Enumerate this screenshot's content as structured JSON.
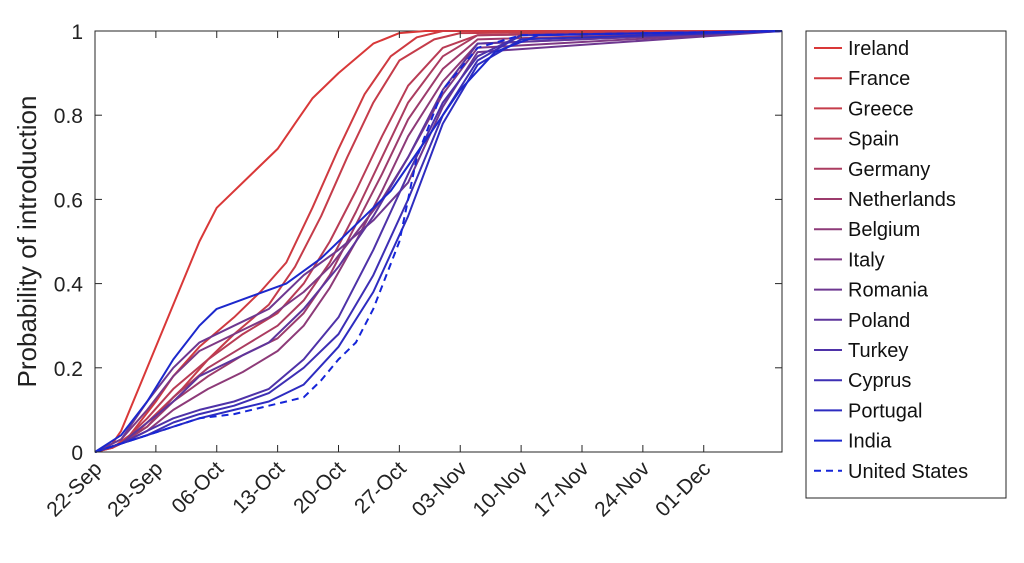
{
  "chart_data": {
    "type": "line",
    "title": "",
    "xlabel": "",
    "ylabel": "Probability of introduction",
    "xlim": [
      "2020-09-22",
      "2020-12-10"
    ],
    "ylim": [
      0,
      1
    ],
    "xticks": [
      {
        "date": "2020-09-22",
        "label": "22-Sep"
      },
      {
        "date": "2020-09-29",
        "label": "29-Sep"
      },
      {
        "date": "2020-10-06",
        "label": "06-Oct"
      },
      {
        "date": "2020-10-13",
        "label": "13-Oct"
      },
      {
        "date": "2020-10-20",
        "label": "20-Oct"
      },
      {
        "date": "2020-10-27",
        "label": "27-Oct"
      },
      {
        "date": "2020-11-03",
        "label": "03-Nov"
      },
      {
        "date": "2020-11-10",
        "label": "10-Nov"
      },
      {
        "date": "2020-11-17",
        "label": "17-Nov"
      },
      {
        "date": "2020-11-24",
        "label": "24-Nov"
      },
      {
        "date": "2020-12-01",
        "label": "01-Dec"
      }
    ],
    "yticks": [
      {
        "value": 0,
        "label": "0"
      },
      {
        "value": 0.2,
        "label": "0.2"
      },
      {
        "value": 0.4,
        "label": "0.4"
      },
      {
        "value": 0.6,
        "label": "0.6"
      },
      {
        "value": 0.8,
        "label": "0.8"
      },
      {
        "value": 1,
        "label": "1"
      }
    ],
    "grid": false,
    "legend_position": "outside-right",
    "series": [
      {
        "name": "Ireland",
        "color": "#d93838",
        "dash": "solid",
        "x": [
          "2020-09-22",
          "2020-09-24",
          "2020-09-25",
          "2020-09-26",
          "2020-09-28",
          "2020-10-01",
          "2020-10-04",
          "2020-10-06",
          "2020-10-10",
          "2020-10-13",
          "2020-10-15",
          "2020-10-17",
          "2020-10-20",
          "2020-10-24",
          "2020-10-27",
          "2020-10-30",
          "2020-11-03",
          "2020-12-10"
        ],
        "y": [
          0,
          0.02,
          0.05,
          0.1,
          0.2,
          0.35,
          0.5,
          0.58,
          0.66,
          0.72,
          0.78,
          0.84,
          0.9,
          0.97,
          0.995,
          1.0,
          1.0,
          1.0
        ]
      },
      {
        "name": "France",
        "color": "#cf3a40",
        "dash": "solid",
        "x": [
          "2020-09-22",
          "2020-09-24",
          "2020-09-26",
          "2020-09-29",
          "2020-10-01",
          "2020-10-04",
          "2020-10-08",
          "2020-10-11",
          "2020-10-14",
          "2020-10-17",
          "2020-10-20",
          "2020-10-23",
          "2020-10-26",
          "2020-10-29",
          "2020-11-01",
          "2020-12-10"
        ],
        "y": [
          0,
          0.01,
          0.04,
          0.12,
          0.18,
          0.25,
          0.32,
          0.38,
          0.45,
          0.58,
          0.72,
          0.85,
          0.94,
          0.985,
          1.0,
          1.0
        ]
      },
      {
        "name": "Greece",
        "color": "#c53c4a",
        "dash": "solid",
        "x": [
          "2020-09-22",
          "2020-09-24",
          "2020-09-26",
          "2020-09-29",
          "2020-10-02",
          "2020-10-05",
          "2020-10-08",
          "2020-10-12",
          "2020-10-15",
          "2020-10-18",
          "2020-10-21",
          "2020-10-24",
          "2020-10-27",
          "2020-10-31",
          "2020-11-03",
          "2020-12-10"
        ],
        "y": [
          0,
          0.01,
          0.03,
          0.09,
          0.15,
          0.22,
          0.28,
          0.35,
          0.44,
          0.56,
          0.7,
          0.83,
          0.93,
          0.98,
          0.995,
          1.0
        ]
      },
      {
        "name": "Spain",
        "color": "#b93c55",
        "dash": "solid",
        "x": [
          "2020-09-22",
          "2020-09-25",
          "2020-09-28",
          "2020-10-01",
          "2020-10-05",
          "2020-10-09",
          "2020-10-13",
          "2020-10-16",
          "2020-10-19",
          "2020-10-22",
          "2020-10-25",
          "2020-10-28",
          "2020-11-01",
          "2020-11-05",
          "2020-12-10"
        ],
        "y": [
          0,
          0.02,
          0.08,
          0.15,
          0.22,
          0.28,
          0.33,
          0.4,
          0.5,
          0.62,
          0.75,
          0.87,
          0.96,
          0.99,
          1.0
        ]
      },
      {
        "name": "Germany",
        "color": "#ab3c60",
        "dash": "solid",
        "x": [
          "2020-09-22",
          "2020-09-25",
          "2020-09-28",
          "2020-10-01",
          "2020-10-05",
          "2020-10-09",
          "2020-10-13",
          "2020-10-16",
          "2020-10-19",
          "2020-10-22",
          "2020-10-25",
          "2020-10-28",
          "2020-11-01",
          "2020-11-05",
          "2020-12-10"
        ],
        "y": [
          0,
          0.02,
          0.06,
          0.13,
          0.2,
          0.25,
          0.3,
          0.36,
          0.45,
          0.57,
          0.7,
          0.83,
          0.94,
          0.99,
          1.0
        ]
      },
      {
        "name": "Netherlands",
        "color": "#9c3b6c",
        "dash": "solid",
        "x": [
          "2020-09-22",
          "2020-09-25",
          "2020-09-28",
          "2020-10-01",
          "2020-10-05",
          "2020-10-09",
          "2020-10-13",
          "2020-10-16",
          "2020-10-19",
          "2020-10-22",
          "2020-10-25",
          "2020-10-28",
          "2020-11-01",
          "2020-11-05",
          "2020-12-10"
        ],
        "y": [
          0,
          0.02,
          0.06,
          0.12,
          0.18,
          0.23,
          0.27,
          0.33,
          0.42,
          0.54,
          0.66,
          0.79,
          0.91,
          0.98,
          1.0
        ]
      },
      {
        "name": "Belgium",
        "color": "#8d3a78",
        "dash": "solid",
        "x": [
          "2020-09-22",
          "2020-09-25",
          "2020-09-28",
          "2020-10-01",
          "2020-10-05",
          "2020-10-09",
          "2020-10-13",
          "2020-10-16",
          "2020-10-19",
          "2020-10-22",
          "2020-10-25",
          "2020-10-28",
          "2020-11-01",
          "2020-11-05",
          "2020-12-10"
        ],
        "y": [
          0,
          0.02,
          0.05,
          0.1,
          0.15,
          0.19,
          0.24,
          0.3,
          0.39,
          0.5,
          0.62,
          0.75,
          0.88,
          0.97,
          1.0
        ]
      },
      {
        "name": "Italy",
        "color": "#7e3984",
        "dash": "solid",
        "x": [
          "2020-09-22",
          "2020-09-25",
          "2020-09-28",
          "2020-10-01",
          "2020-10-04",
          "2020-10-08",
          "2020-10-12",
          "2020-10-16",
          "2020-10-19",
          "2020-10-22",
          "2020-10-25",
          "2020-10-28",
          "2020-11-01",
          "2020-11-05",
          "2020-12-10"
        ],
        "y": [
          0,
          0.03,
          0.1,
          0.18,
          0.24,
          0.28,
          0.32,
          0.38,
          0.44,
          0.52,
          0.6,
          0.7,
          0.85,
          0.96,
          1.0
        ]
      },
      {
        "name": "Romania",
        "color": "#6e3790",
        "dash": "solid",
        "x": [
          "2020-09-22",
          "2020-09-25",
          "2020-09-28",
          "2020-10-01",
          "2020-10-04",
          "2020-10-08",
          "2020-10-12",
          "2020-10-16",
          "2020-10-20",
          "2020-10-24",
          "2020-10-28",
          "2020-11-01",
          "2020-11-05",
          "2020-12-10"
        ],
        "y": [
          0,
          0.03,
          0.12,
          0.2,
          0.26,
          0.3,
          0.34,
          0.42,
          0.48,
          0.55,
          0.64,
          0.82,
          0.95,
          1.0
        ]
      },
      {
        "name": "Poland",
        "color": "#5e359c",
        "dash": "solid",
        "x": [
          "2020-09-22",
          "2020-09-25",
          "2020-09-28",
          "2020-10-01",
          "2020-10-04",
          "2020-10-08",
          "2020-10-12",
          "2020-10-16",
          "2020-10-20",
          "2020-10-24",
          "2020-10-28",
          "2020-11-01",
          "2020-11-05",
          "2020-12-10"
        ],
        "y": [
          0,
          0.02,
          0.07,
          0.12,
          0.18,
          0.22,
          0.26,
          0.34,
          0.44,
          0.56,
          0.7,
          0.86,
          0.97,
          1.0
        ]
      },
      {
        "name": "Turkey",
        "color": "#4e32a8",
        "dash": "solid",
        "x": [
          "2020-09-22",
          "2020-09-25",
          "2020-09-28",
          "2020-10-01",
          "2020-10-04",
          "2020-10-08",
          "2020-10-12",
          "2020-10-16",
          "2020-10-20",
          "2020-10-24",
          "2020-10-28",
          "2020-11-01",
          "2020-11-05",
          "2020-11-10",
          "2020-12-10"
        ],
        "y": [
          0,
          0.02,
          0.05,
          0.08,
          0.1,
          0.12,
          0.15,
          0.22,
          0.32,
          0.48,
          0.66,
          0.83,
          0.94,
          0.99,
          1.0
        ]
      },
      {
        "name": "Cyprus",
        "color": "#3d2fb4",
        "dash": "solid",
        "x": [
          "2020-09-22",
          "2020-09-25",
          "2020-09-28",
          "2020-10-01",
          "2020-10-04",
          "2020-10-08",
          "2020-10-12",
          "2020-10-16",
          "2020-10-20",
          "2020-10-24",
          "2020-10-28",
          "2020-11-01",
          "2020-11-05",
          "2020-11-10",
          "2020-12-10"
        ],
        "y": [
          0,
          0.02,
          0.04,
          0.07,
          0.09,
          0.11,
          0.14,
          0.2,
          0.28,
          0.42,
          0.6,
          0.8,
          0.93,
          0.99,
          1.0
        ]
      },
      {
        "name": "Portugal",
        "color": "#2d2cc0",
        "dash": "solid",
        "x": [
          "2020-09-22",
          "2020-09-25",
          "2020-09-28",
          "2020-10-01",
          "2020-10-04",
          "2020-10-08",
          "2020-10-12",
          "2020-10-16",
          "2020-10-20",
          "2020-10-24",
          "2020-10-28",
          "2020-11-01",
          "2020-11-05",
          "2020-11-10",
          "2020-12-10"
        ],
        "y": [
          0,
          0.02,
          0.04,
          0.06,
          0.08,
          0.1,
          0.12,
          0.16,
          0.25,
          0.38,
          0.56,
          0.78,
          0.92,
          0.98,
          1.0
        ]
      },
      {
        "name": "India",
        "color": "#1c28cc",
        "dash": "solid",
        "x": [
          "2020-09-22",
          "2020-09-25",
          "2020-09-28",
          "2020-10-01",
          "2020-10-04",
          "2020-10-06",
          "2020-10-10",
          "2020-10-14",
          "2020-10-18",
          "2020-10-22",
          "2020-10-26",
          "2020-10-30",
          "2020-11-03",
          "2020-11-07",
          "2020-11-12",
          "2020-12-10"
        ],
        "y": [
          0,
          0.04,
          0.12,
          0.22,
          0.3,
          0.34,
          0.37,
          0.4,
          0.46,
          0.54,
          0.62,
          0.74,
          0.86,
          0.95,
          0.99,
          1.0
        ]
      },
      {
        "name": "United States",
        "color": "#1525d8",
        "dash": "dashed",
        "x": [
          "2020-09-22",
          "2020-09-25",
          "2020-09-28",
          "2020-10-01",
          "2020-10-04",
          "2020-10-08",
          "2020-10-12",
          "2020-10-16",
          "2020-10-18",
          "2020-10-20",
          "2020-10-22",
          "2020-10-24",
          "2020-10-27",
          "2020-10-29",
          "2020-11-01",
          "2020-11-05",
          "2020-11-10",
          "2020-12-10"
        ],
        "y": [
          0,
          0.02,
          0.04,
          0.06,
          0.08,
          0.09,
          0.11,
          0.13,
          0.17,
          0.22,
          0.26,
          0.34,
          0.5,
          0.7,
          0.86,
          0.96,
          0.99,
          1.0
        ]
      }
    ]
  }
}
